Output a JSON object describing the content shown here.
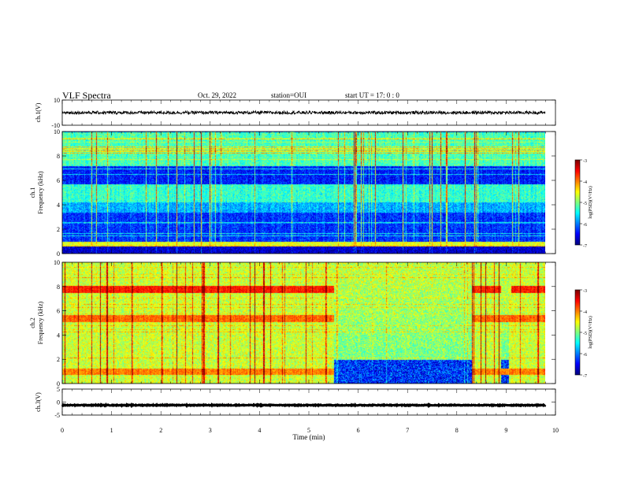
{
  "header": {
    "title": "VLF Spectra",
    "date": "Oct. 29, 2022",
    "station": "station=OUI",
    "start": "start UT =  17: 0  : 0"
  },
  "chart_data": [
    {
      "type": "line",
      "name": "ch1-waveform",
      "ylabel": "ch.1(V)",
      "ylim": [
        -10,
        10
      ],
      "yticks": [
        "10",
        "-10"
      ],
      "xlim": [
        0,
        10
      ],
      "trace": {
        "x_range": [
          0,
          9.8
        ],
        "level": 0,
        "amplitude": 1.2
      },
      "color": "#000000"
    },
    {
      "type": "heatmap",
      "name": "ch1-spectrogram",
      "ylabel": "ch.1\nFrequency (kHz)",
      "ylim": [
        0,
        10
      ],
      "yticks": [
        "0",
        "2",
        "4",
        "6",
        "8",
        "10"
      ],
      "xlim": [
        0,
        10
      ],
      "data_extent_x": [
        0,
        9.8
      ],
      "colorbar": {
        "label": "log(PSD)(V²/Hz)",
        "range": [
          -7,
          -3
        ],
        "ticks": [
          "-3",
          "-4",
          "-5",
          "-6",
          "-7"
        ]
      },
      "bands": [
        {
          "f": [
            0,
            0.6
          ],
          "level": -6.7
        },
        {
          "f": [
            0.6,
            1.0
          ],
          "level": -4.6
        },
        {
          "f": [
            1.0,
            3.4
          ],
          "level": -6.3
        },
        {
          "f": [
            3.4,
            4.2
          ],
          "level": -5.8
        },
        {
          "f": [
            4.2,
            5.7
          ],
          "level": -5.3
        },
        {
          "f": [
            5.7,
            7.2
          ],
          "level": -6.4
        },
        {
          "f": [
            7.2,
            10
          ],
          "level": -5.2
        }
      ]
    },
    {
      "type": "heatmap",
      "name": "ch2-spectrogram",
      "ylabel": "ch.2\nFrequency (kHz)",
      "ylim": [
        0,
        10
      ],
      "yticks": [
        "0",
        "2",
        "4",
        "6",
        "8",
        "10"
      ],
      "xlim": [
        0,
        10
      ],
      "data_extent_x": [
        0,
        9.8
      ],
      "colorbar": {
        "label": "log(PSD)(V²/Hz)",
        "range": [
          -7,
          -3
        ],
        "ticks": [
          "-3",
          "-4",
          "-5",
          "-6",
          "-7"
        ]
      },
      "lines_khz": [
        {
          "f": 7.8,
          "level": -3.6,
          "gaps_min": [
            [
              5.5,
              8.3
            ],
            [
              8.9,
              9.1
            ]
          ]
        },
        {
          "f": 5.4,
          "level": -3.9,
          "gaps_min": [
            [
              5.5,
              8.3
            ]
          ]
        },
        {
          "f": 1.0,
          "level": -4.0,
          "gaps_min": [
            [
              5.5,
              8.3
            ]
          ]
        }
      ],
      "quiet_interval_min": [
        [
          5.5,
          8.3
        ],
        [
          8.9,
          9.05
        ]
      ],
      "quiet_band_khz": [
        0,
        2.0
      ]
    },
    {
      "type": "line",
      "name": "ch3-waveform",
      "ylabel": "ch.3(V)",
      "ylim": [
        -5,
        5
      ],
      "yticks": [
        "5",
        "0",
        "-5"
      ],
      "xlim": [
        0,
        10
      ],
      "trace": {
        "x_range": [
          0,
          9.8
        ],
        "level": -1.2,
        "amplitude": 0.15
      },
      "color": "#000000"
    }
  ],
  "xaxis": {
    "label": "Time (min)",
    "ticks": [
      "0",
      "1",
      "2",
      "3",
      "4",
      "5",
      "6",
      "7",
      "8",
      "9",
      "10"
    ]
  }
}
